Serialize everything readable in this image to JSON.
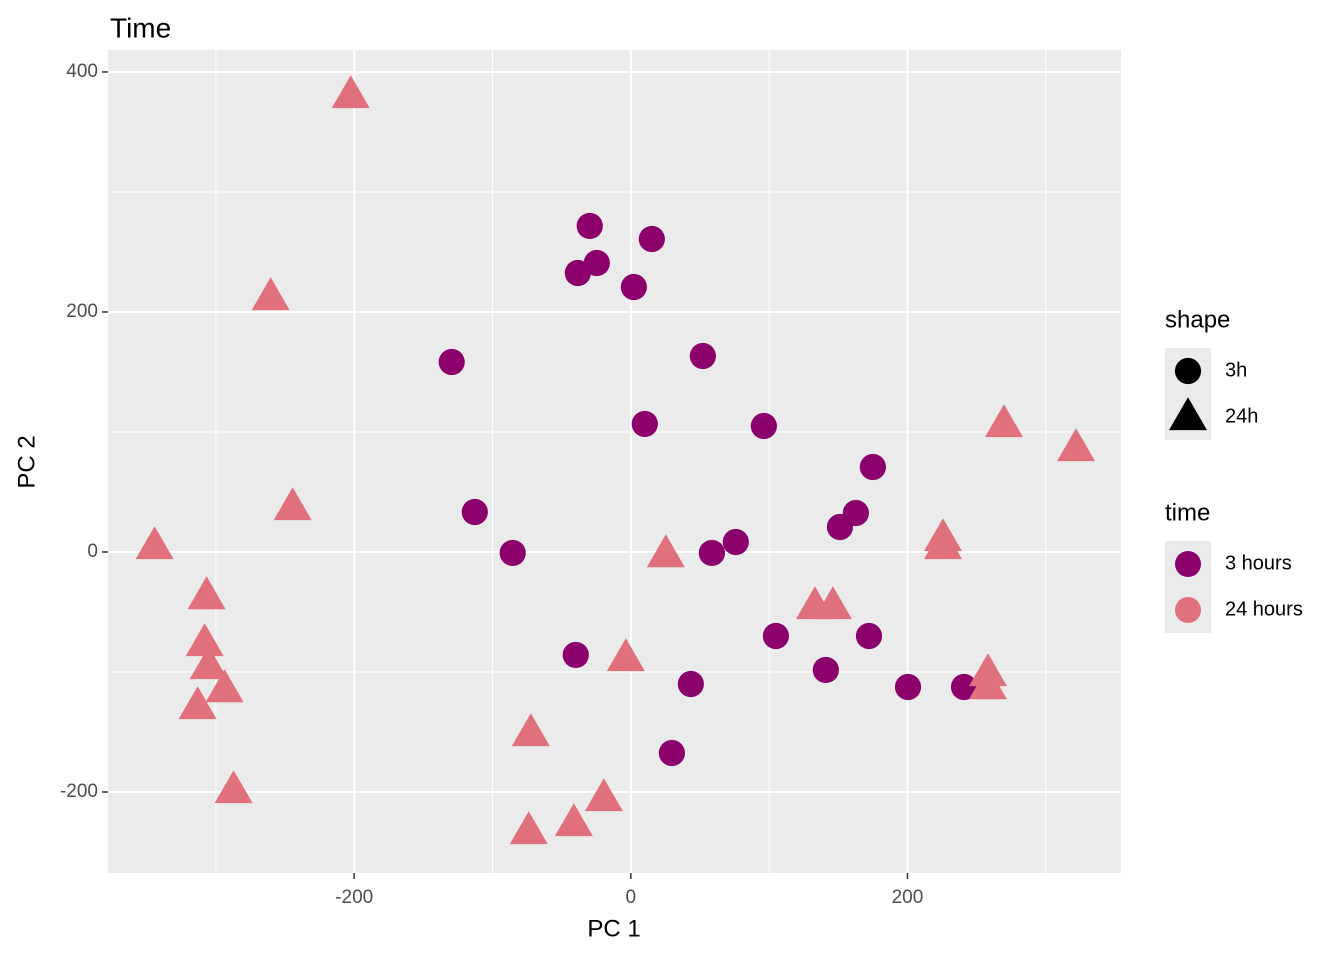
{
  "chart_data": {
    "type": "scatter",
    "title": "Time",
    "x_label": "PC 1",
    "y_label": "PC 2",
    "xlim": [
      -378,
      354.4
    ],
    "ylim": [
      -267.5,
      418.3
    ],
    "xticks": [
      -200,
      0,
      200
    ],
    "yticks": [
      -200,
      0,
      200,
      400
    ],
    "grid": true,
    "legend_position": "right",
    "shape_legend": {
      "title": "shape",
      "labels": [
        "3h",
        "24h"
      ]
    },
    "color_legend_title": "time",
    "series": [
      {
        "name": "3 hours",
        "marker": "circle",
        "color": "#8b006b",
        "x": [
          -29.7,
          15.2,
          -24.6,
          -38.3,
          2.2,
          -129.5,
          52.1,
          10.1,
          96.2,
          175,
          -112.8,
          162.7,
          151.2,
          -85.4,
          58.6,
          75.9,
          -39.8,
          104.9,
          172.2,
          141,
          43.4,
          200.4,
          240.9,
          29.7
        ],
        "values": [
          271.7,
          260.8,
          240.8,
          232.5,
          220.8,
          158.3,
          163.3,
          106.7,
          105,
          70.8,
          33.3,
          32.5,
          20.8,
          -0.8,
          -0.8,
          8.3,
          -85.8,
          -70,
          -70,
          -98.3,
          -110,
          -112.5,
          -112.5,
          -167.5
        ]
      },
      {
        "name": "24 hours",
        "marker": "triangle",
        "color": "#e0707c",
        "x": [
          -202.5,
          -260.4,
          -244.5,
          -344.3,
          -306.7,
          -308.1,
          -305.2,
          -293.7,
          -313.2,
          -287.2,
          269.8,
          321.9,
          225.7,
          225.7,
          25.3,
          133.1,
          146.1,
          -3.6,
          258.2,
          258.2,
          -72.3,
          -19.5,
          -41.2,
          -73.8
        ],
        "values": [
          380.8,
          212.5,
          37.5,
          5,
          -36.7,
          -75.8,
          -95,
          -114.2,
          -128.3,
          -198.3,
          106.7,
          86.7,
          11.7,
          5,
          -1.7,
          -45,
          -45,
          -88.3,
          -100.8,
          -111.7,
          -150.8,
          -205,
          -225.8,
          -232.5
        ]
      }
    ]
  }
}
